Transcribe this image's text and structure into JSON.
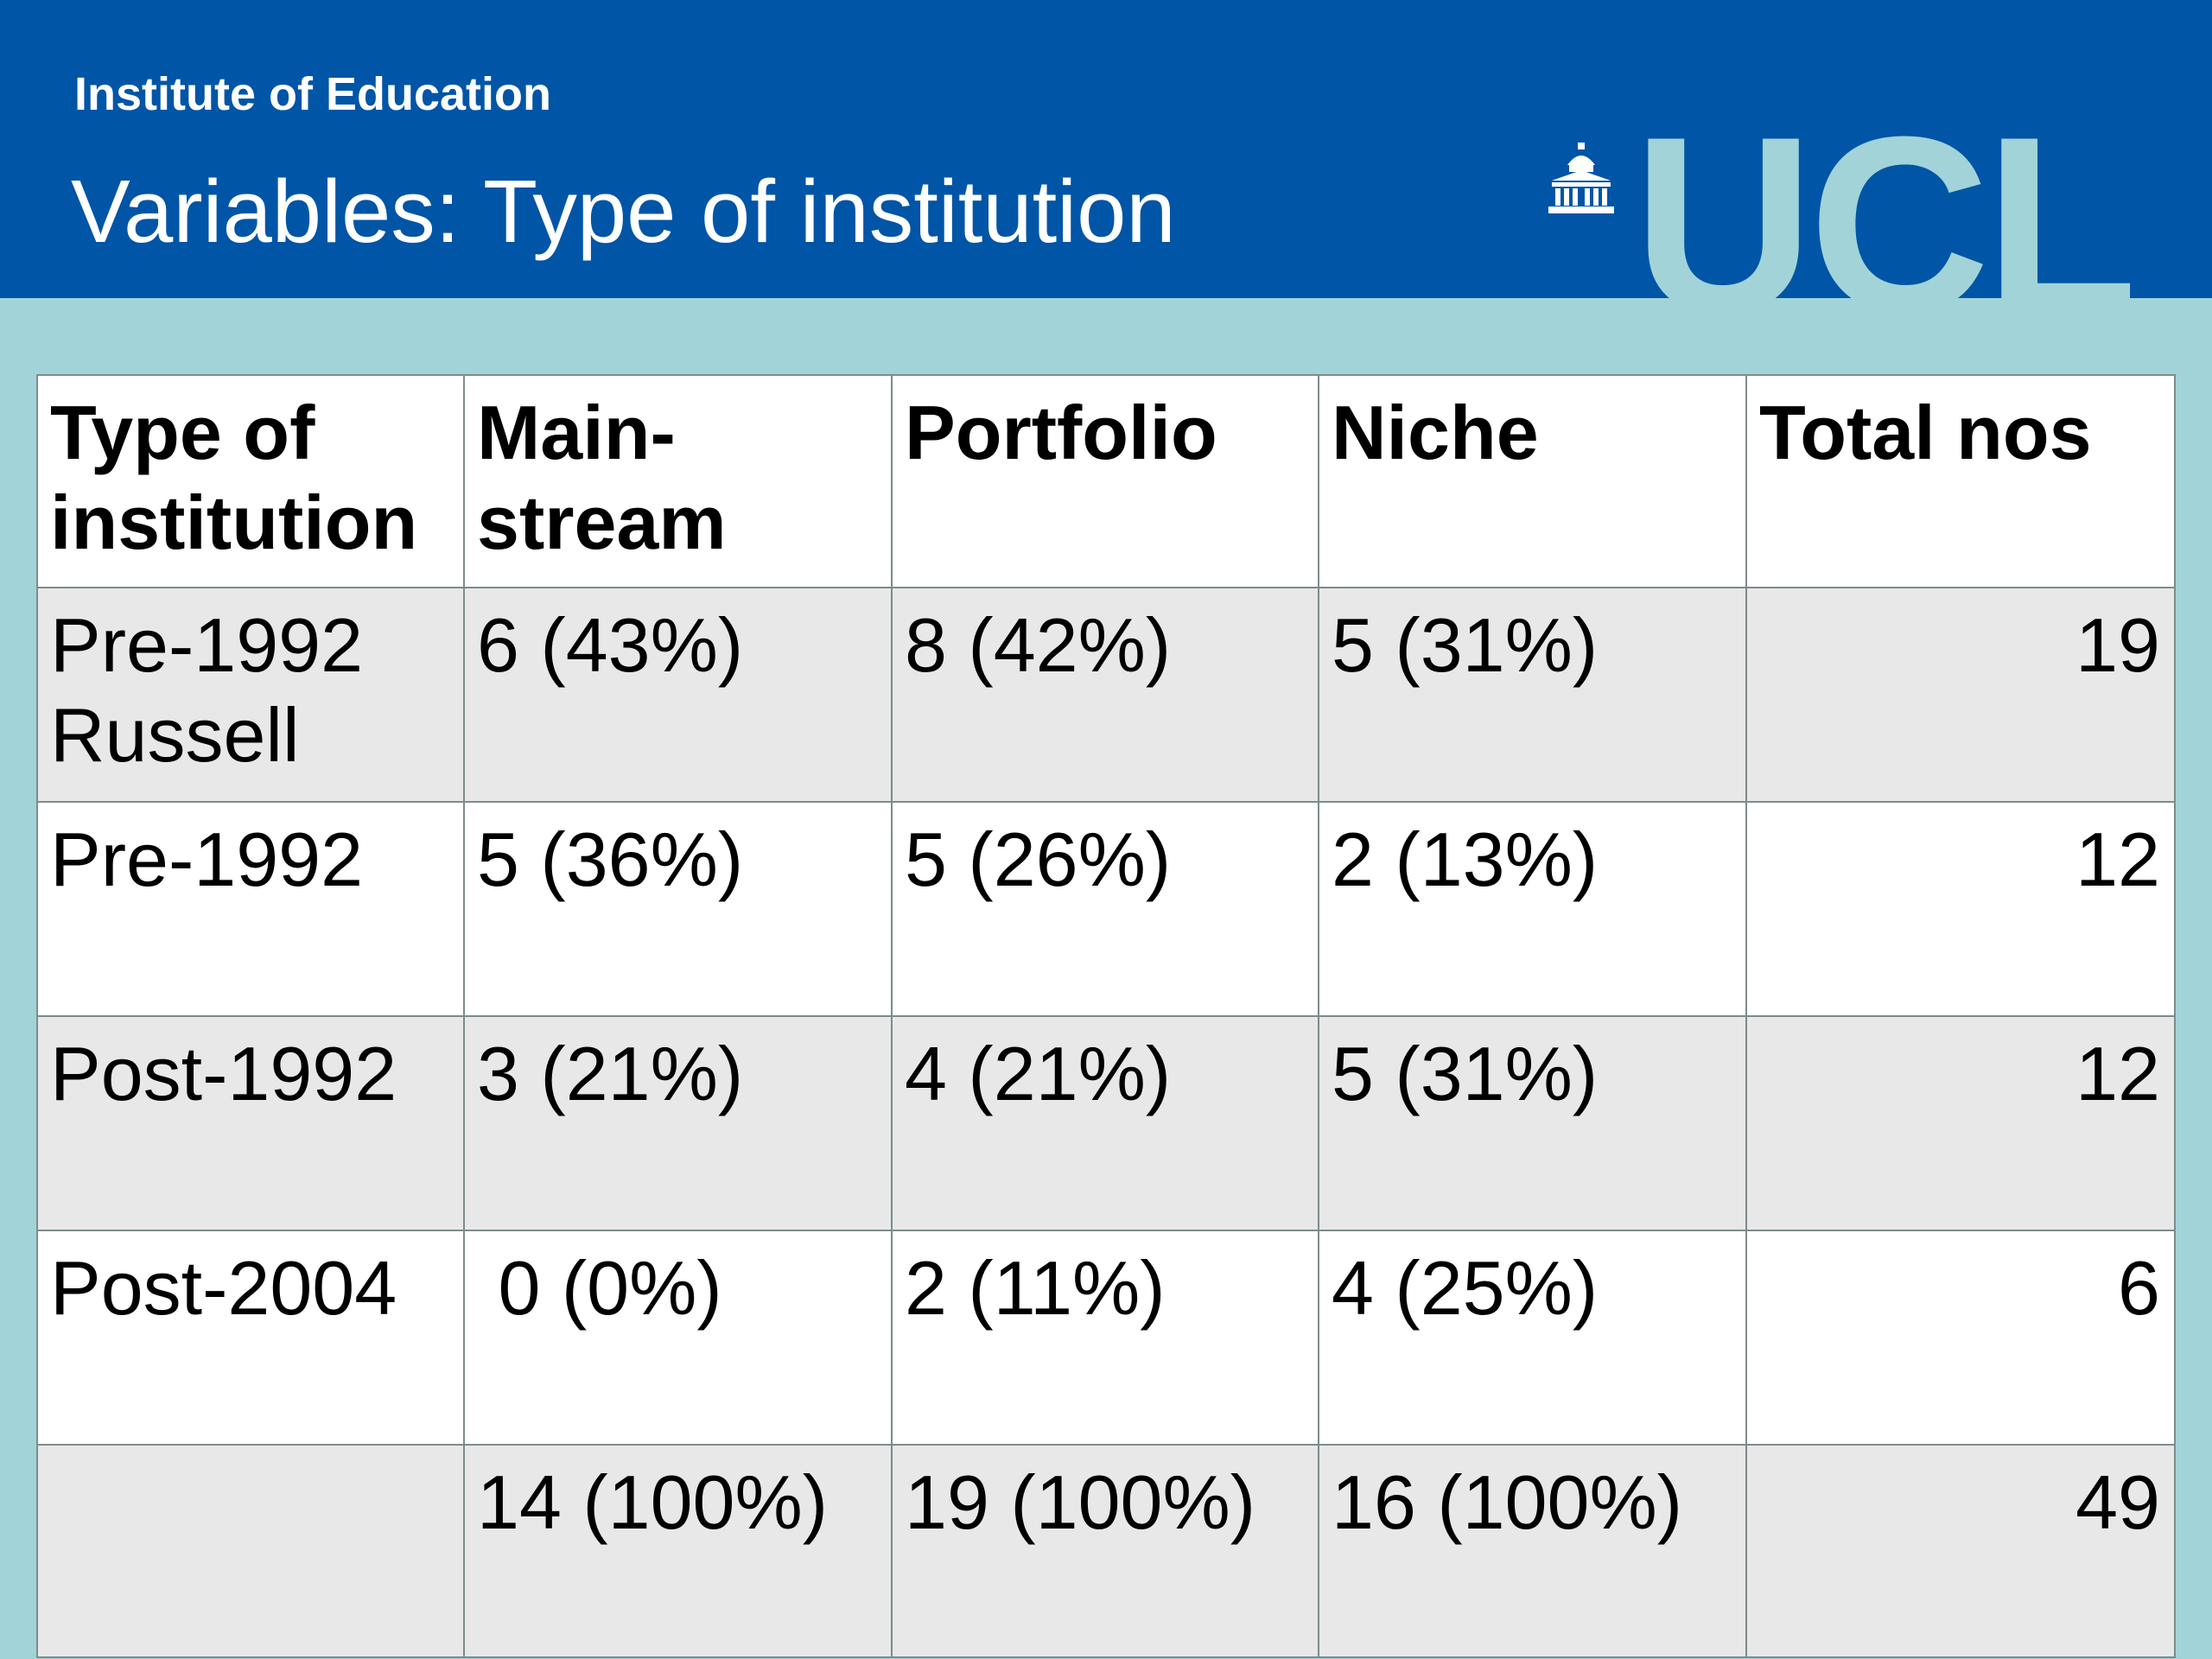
{
  "header": {
    "institute": "Institute of Education",
    "title": "Variables: Type of institution",
    "logo_text": "UCL",
    "logo_icon": "portico-building-icon",
    "colors": {
      "header_bg": "#0055a6",
      "slide_bg": "#a2d3d8",
      "row_shade": "#e8e8e8"
    }
  },
  "table": {
    "headers": [
      "Type of institution",
      "Main-stream",
      "Portfolio",
      "Niche",
      "Total nos"
    ],
    "rows": [
      [
        "Pre-1992 Russell",
        "6 (43%)",
        "8 (42%)",
        "5 (31%)",
        "19"
      ],
      [
        "Pre-1992",
        "5 (36%)",
        "5 (26%)",
        "2 (13%)",
        "12"
      ],
      [
        "Post-1992",
        "3 (21%)",
        "4 (21%)",
        "5 (31%)",
        "12"
      ],
      [
        "Post-2004",
        " 0 (0%)",
        "2 (11%)",
        "4 (25%)",
        "6"
      ],
      [
        "",
        "14 (100%)",
        "19 (100%)",
        "16 (100%)",
        "49"
      ]
    ]
  }
}
